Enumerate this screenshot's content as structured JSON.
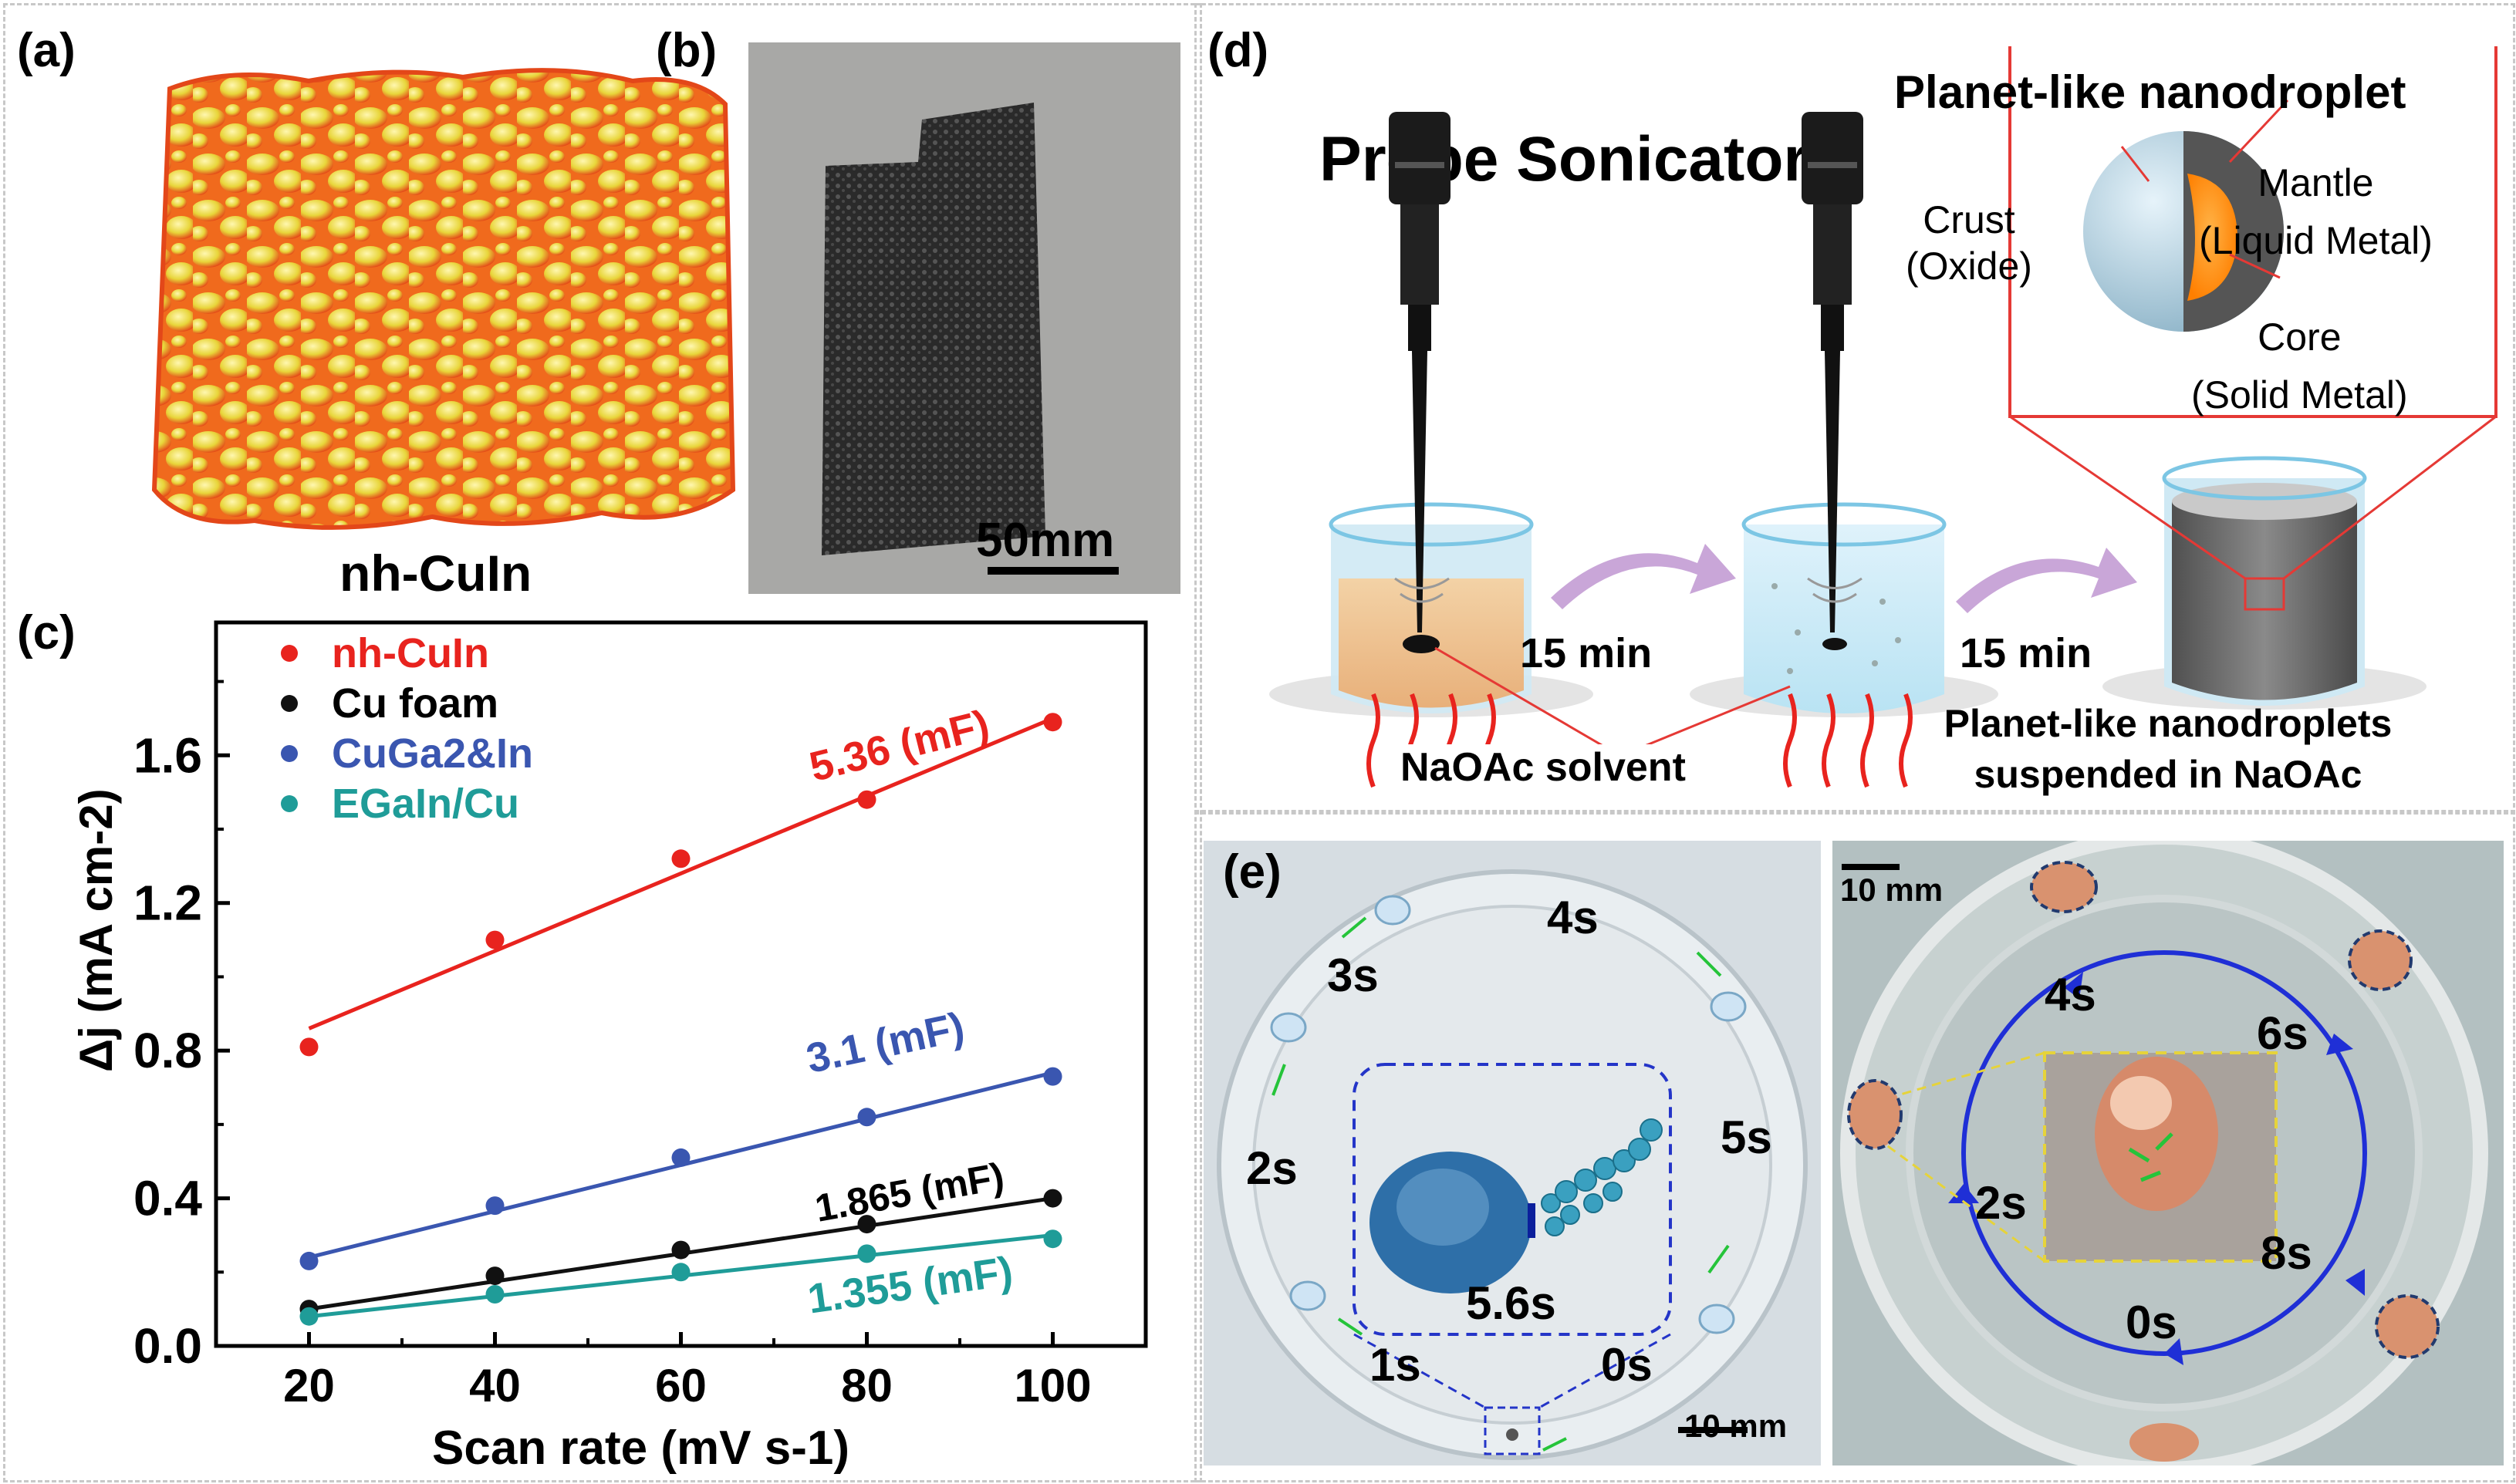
{
  "panels": {
    "a": {
      "label": "(a)",
      "caption": "nh-CuIn"
    },
    "b": {
      "label": "(b)",
      "scalebar": "50mm"
    },
    "c": {
      "label": "(c)"
    },
    "d": {
      "label": "(d)",
      "title": "Probe Sonicator",
      "time1": "15 min",
      "time2": "15 min",
      "solvent_label": "NaOAc solvent",
      "suspension_label_line1": "Planet-like nanodroplets",
      "suspension_label_line2": "suspended in NaOAc",
      "inset_title": "Planet-like nanodroplet",
      "crust_line1": "Crust",
      "crust_line2": "(Oxide)",
      "mantle_line1": "Mantle",
      "mantle_line2": "(Liquid Metal)",
      "core_line1": "Core",
      "core_line2": "(Solid Metal)"
    },
    "e": {
      "label": "(e)",
      "left_scalebar": "10 mm",
      "right_scalebar": "10 mm",
      "left_times": [
        "0s",
        "1s",
        "2s",
        "3s",
        "4s",
        "5s",
        "5.6s"
      ],
      "right_times": [
        "0s",
        "2s",
        "4s",
        "6s",
        "8s"
      ]
    }
  },
  "colors": {
    "nhCuIn": "#e8231e",
    "cuFoam": "#111111",
    "cuGa2In": "#3a56b0",
    "egainCu": "#1f9c98",
    "accent_red": "#e53935",
    "arrow_purple": "#c9a6d8",
    "blue_ring": "#1f2fd6"
  },
  "chart_data": {
    "type": "scatter",
    "title": "",
    "xlabel": "Scan rate (mV s-1)",
    "ylabel": "Δj (mA cm-2)",
    "xlim": [
      10,
      110
    ],
    "ylim": [
      0.0,
      1.96
    ],
    "xticks": [
      "20",
      "40",
      "60",
      "80",
      "100"
    ],
    "yticks": [
      "0.0",
      "0.4",
      "0.8",
      "1.2",
      "1.6"
    ],
    "x": [
      20,
      40,
      60,
      80,
      100
    ],
    "series": [
      {
        "name": "nh-CuIn",
        "values": [
          0.81,
          1.1,
          1.32,
          1.48,
          1.69
        ],
        "fit": [
          0.86,
          1.07,
          1.28,
          1.49,
          1.7
        ],
        "capacitance": "5.36 (mF)"
      },
      {
        "name": "Cu foam",
        "values": [
          0.1,
          0.19,
          0.26,
          0.33,
          0.4
        ],
        "fit": [
          0.1,
          0.175,
          0.25,
          0.325,
          0.4
        ],
        "capacitance": "1.865 (mF)"
      },
      {
        "name": "CuGa2&In",
        "values": [
          0.23,
          0.38,
          0.51,
          0.62,
          0.73
        ],
        "fit": [
          0.24,
          0.365,
          0.49,
          0.615,
          0.74
        ],
        "capacitance": "3.1 (mF)"
      },
      {
        "name": "EGaIn/Cu",
        "values": [
          0.08,
          0.14,
          0.2,
          0.25,
          0.29
        ],
        "fit": [
          0.08,
          0.135,
          0.19,
          0.245,
          0.3
        ],
        "capacitance": "1.355 (mF)"
      }
    ]
  }
}
